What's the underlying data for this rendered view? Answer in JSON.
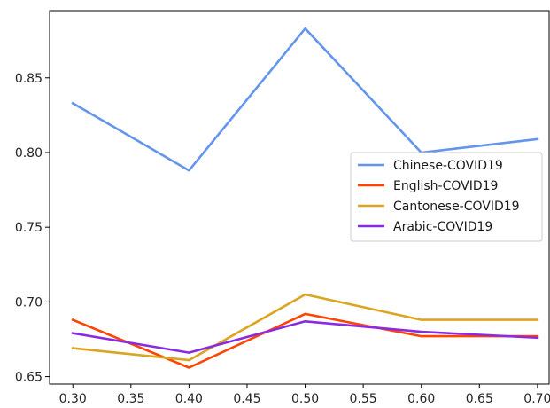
{
  "chart_data": {
    "type": "line",
    "title": "",
    "xlabel": "",
    "ylabel": "",
    "x": [
      0.3,
      0.4,
      0.5,
      0.6,
      0.7
    ],
    "xlim": [
      0.28,
      0.71
    ],
    "ylim": [
      0.645,
      0.895
    ],
    "xticks": [
      "0.30",
      "0.35",
      "0.40",
      "0.45",
      "0.50",
      "0.55",
      "0.60",
      "0.65",
      "0.70"
    ],
    "yticks": [
      "0.65",
      "0.70",
      "0.75",
      "0.80",
      "0.85"
    ],
    "grid": false,
    "legend_position": "center-right",
    "series": [
      {
        "name": "Chinese-COVID19",
        "color": "#6495ED",
        "values": [
          0.833,
          0.788,
          0.883,
          0.8,
          0.809
        ]
      },
      {
        "name": "English-COVID19",
        "color": "#FF4500",
        "values": [
          0.688,
          0.656,
          0.692,
          0.677,
          0.677
        ]
      },
      {
        "name": "Cantonese-COVID19",
        "color": "#DAA520",
        "values": [
          0.669,
          0.661,
          0.705,
          0.688,
          0.688
        ]
      },
      {
        "name": "Arabic-COVID19",
        "color": "#8A2BE2",
        "values": [
          0.679,
          0.666,
          0.687,
          0.68,
          0.676
        ]
      }
    ]
  }
}
